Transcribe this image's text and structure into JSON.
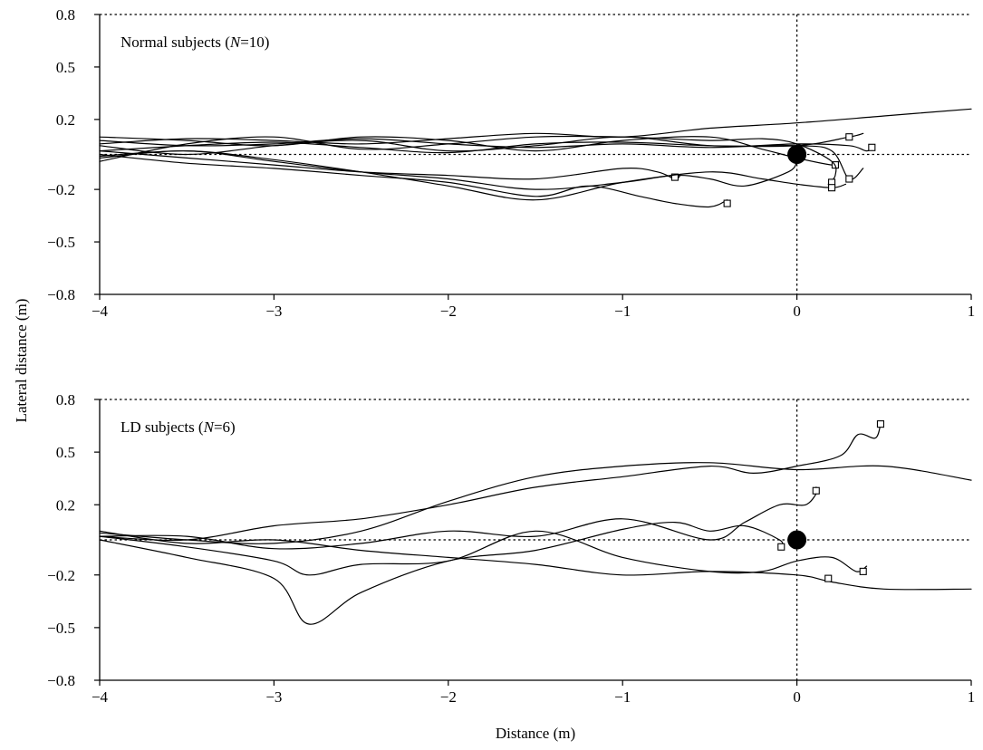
{
  "chart_data": [
    {
      "type": "line",
      "title": "Normal subjects (N=10)",
      "title_parts": [
        "Normal subjects (",
        "N",
        "=10)"
      ],
      "xlabel": "",
      "ylabel": "",
      "xlim": [
        -4,
        1
      ],
      "ylim": [
        -0.8,
        0.8
      ],
      "xticks": [
        -4,
        -3,
        -2,
        -1,
        0,
        1
      ],
      "xtick_labels": [
        "−4",
        "−3",
        "−2",
        "−1",
        "0",
        "1"
      ],
      "yticks": [
        -0.8,
        -0.5,
        -0.2,
        0.2,
        0.5,
        0.8
      ],
      "ytick_labels": [
        "−0.8",
        "−0.5",
        "−0.2",
        "0.2",
        "0.5",
        "0.8"
      ],
      "reference_lines": {
        "x": 0,
        "y": 0
      },
      "target": {
        "x": 0,
        "y": 0
      },
      "series": [
        {
          "values": [
            [
              -4,
              0.02
            ],
            [
              -3.5,
              0.05
            ],
            [
              -3,
              0.07
            ],
            [
              -2.5,
              0.04
            ],
            [
              -2,
              0.01
            ],
            [
              -1.5,
              0.06
            ],
            [
              -1,
              0.07
            ],
            [
              -0.5,
              0.05
            ],
            [
              0,
              0.05
            ],
            [
              0.3,
              0.1
            ],
            [
              0.38,
              0.12
            ]
          ],
          "end": [
            0.3,
            0.1
          ]
        },
        {
          "values": [
            [
              -4,
              0.06
            ],
            [
              -3.5,
              0.09
            ],
            [
              -3,
              0.08
            ],
            [
              -2.5,
              0.06
            ],
            [
              -2,
              0.09
            ],
            [
              -1.5,
              0.12
            ],
            [
              -1,
              0.1
            ],
            [
              -0.5,
              0.15
            ],
            [
              0,
              0.18
            ],
            [
              0.5,
              0.22
            ],
            [
              1,
              0.26
            ]
          ],
          "end": null
        },
        {
          "values": [
            [
              -4,
              -0.02
            ],
            [
              -3.5,
              0.02
            ],
            [
              -3,
              -0.04
            ],
            [
              -2.5,
              -0.1
            ],
            [
              -2,
              -0.14
            ],
            [
              -1.5,
              -0.2
            ],
            [
              -1,
              -0.16
            ],
            [
              -0.7,
              -0.12
            ],
            [
              -0.5,
              -0.14
            ],
            [
              -0.3,
              -0.18
            ],
            [
              -0.05,
              -0.1
            ],
            [
              0,
              -0.04
            ]
          ],
          "end": null
        },
        {
          "values": [
            [
              -4,
              0.1
            ],
            [
              -3.5,
              0.08
            ],
            [
              -3,
              0.05
            ],
            [
              -2.5,
              0.1
            ],
            [
              -2,
              0.08
            ],
            [
              -1.5,
              0.02
            ],
            [
              -1,
              0.08
            ],
            [
              -0.5,
              0.1
            ],
            [
              -0.2,
              0.03
            ],
            [
              0,
              -0.02
            ],
            [
              0.2,
              -0.06
            ],
            [
              0.24,
              -0.04
            ]
          ],
          "end": [
            0.22,
            -0.06
          ]
        },
        {
          "values": [
            [
              -4,
              0.02
            ],
            [
              -3.5,
              -0.02
            ],
            [
              -3,
              -0.06
            ],
            [
              -2.5,
              -0.1
            ],
            [
              -2,
              -0.12
            ],
            [
              -1.5,
              -0.14
            ],
            [
              -1,
              -0.08
            ],
            [
              -0.8,
              -0.1
            ],
            [
              -0.7,
              -0.14
            ],
            [
              -0.67,
              -0.12
            ]
          ],
          "end": [
            -0.7,
            -0.13
          ]
        },
        {
          "values": [
            [
              -4,
              0.05
            ],
            [
              -3.5,
              0
            ],
            [
              -3,
              0.05
            ],
            [
              -2.5,
              0.08
            ],
            [
              -2,
              0.02
            ],
            [
              -1.5,
              0.05
            ],
            [
              -1,
              0.1
            ],
            [
              -0.5,
              0.05
            ],
            [
              0,
              0.05
            ],
            [
              0.2,
              0.02
            ],
            [
              0.3,
              -0.14
            ],
            [
              0.38,
              -0.08
            ]
          ],
          "end": [
            0.3,
            -0.14
          ]
        },
        {
          "values": [
            [
              -4,
              0
            ],
            [
              -3.5,
              -0.05
            ],
            [
              -3,
              -0.08
            ],
            [
              -2.5,
              -0.12
            ],
            [
              -2,
              -0.16
            ],
            [
              -1.5,
              -0.24
            ],
            [
              -1.2,
              -0.18
            ],
            [
              -0.9,
              -0.24
            ],
            [
              -0.7,
              -0.28
            ],
            [
              -0.5,
              -0.3
            ],
            [
              -0.4,
              -0.26
            ]
          ],
          "end": [
            -0.4,
            -0.28
          ]
        },
        {
          "values": [
            [
              -4,
              -0.04
            ],
            [
              -3.5,
              0.06
            ],
            [
              -3,
              0.1
            ],
            [
              -2.5,
              0.03
            ],
            [
              -2,
              0.06
            ],
            [
              -1.5,
              0.1
            ],
            [
              -1,
              0.1
            ],
            [
              -0.5,
              0.08
            ],
            [
              -0.2,
              0.09
            ],
            [
              0,
              0.06
            ],
            [
              0.2,
              -0.04
            ],
            [
              0.22,
              -0.12
            ],
            [
              0.18,
              -0.17
            ]
          ],
          "end": [
            0.2,
            -0.16
          ]
        },
        {
          "values": [
            [
              -4,
              0.08
            ],
            [
              -3.5,
              0.05
            ],
            [
              -3,
              0.06
            ],
            [
              -2.5,
              0.09
            ],
            [
              -2,
              0.06
            ],
            [
              -1.5,
              0.04
            ],
            [
              -1,
              0.06
            ],
            [
              -0.5,
              0.04
            ],
            [
              0,
              0.06
            ],
            [
              0.3,
              0.05
            ],
            [
              0.4,
              0.02
            ],
            [
              0.44,
              0.05
            ]
          ],
          "end": [
            0.43,
            0.04
          ]
        },
        {
          "values": [
            [
              -4,
              -0.01
            ],
            [
              -3.5,
              0.02
            ],
            [
              -3,
              -0.03
            ],
            [
              -2.5,
              -0.1
            ],
            [
              -2,
              -0.18
            ],
            [
              -1.5,
              -0.26
            ],
            [
              -1,
              -0.16
            ],
            [
              -0.5,
              -0.1
            ],
            [
              -0.2,
              -0.14
            ],
            [
              0,
              -0.17
            ],
            [
              0.2,
              -0.19
            ],
            [
              0.28,
              -0.17
            ]
          ],
          "end": [
            0.2,
            -0.19
          ]
        }
      ]
    },
    {
      "type": "line",
      "title": "LD subjects (N=6)",
      "title_parts": [
        "LD subjects (",
        "N",
        "=6)"
      ],
      "xlabel": "Distance (m)",
      "ylabel": "Lateral distance (m)",
      "xlim": [
        -4,
        1
      ],
      "ylim": [
        -0.8,
        0.8
      ],
      "xticks": [
        -4,
        -3,
        -2,
        -1,
        0,
        1
      ],
      "xtick_labels": [
        "−4",
        "−3",
        "−2",
        "−1",
        "0",
        "1"
      ],
      "yticks": [
        -0.8,
        -0.5,
        -0.2,
        0.2,
        0.5,
        0.8
      ],
      "ytick_labels": [
        "−0.8",
        "−0.5",
        "−0.2",
        "0.2",
        "0.5",
        "0.8"
      ],
      "reference_lines": {
        "x": 0,
        "y": 0
      },
      "target": {
        "x": 0,
        "y": 0
      },
      "series": [
        {
          "values": [
            [
              -4,
              0.02
            ],
            [
              -3.5,
              0
            ],
            [
              -3,
              0.08
            ],
            [
              -2.5,
              0.12
            ],
            [
              -2,
              0.2
            ],
            [
              -1.5,
              0.3
            ],
            [
              -1,
              0.36
            ],
            [
              -0.5,
              0.42
            ],
            [
              -0.25,
              0.38
            ],
            [
              0,
              0.42
            ],
            [
              0.25,
              0.48
            ],
            [
              0.35,
              0.6
            ],
            [
              0.45,
              0.58
            ],
            [
              0.48,
              0.66
            ]
          ],
          "end": [
            0.48,
            0.66
          ]
        },
        {
          "values": [
            [
              -4,
              0.04
            ],
            [
              -3.5,
              0
            ],
            [
              -3,
              -0.02
            ],
            [
              -2.5,
              0.05
            ],
            [
              -2,
              0.22
            ],
            [
              -1.5,
              0.36
            ],
            [
              -1,
              0.42
            ],
            [
              -0.5,
              0.44
            ],
            [
              0,
              0.4
            ],
            [
              0.5,
              0.42
            ],
            [
              1,
              0.34
            ]
          ],
          "end": null
        },
        {
          "values": [
            [
              -4,
              0.02
            ],
            [
              -3.5,
              -0.04
            ],
            [
              -3,
              -0.12
            ],
            [
              -2.8,
              -0.2
            ],
            [
              -2.5,
              -0.14
            ],
            [
              -2,
              -0.12
            ],
            [
              -1.5,
              0.05
            ],
            [
              -1,
              -0.1
            ],
            [
              -0.5,
              -0.18
            ],
            [
              -0.2,
              -0.18
            ],
            [
              0,
              -0.12
            ],
            [
              0.2,
              -0.1
            ],
            [
              0.34,
              -0.18
            ],
            [
              0.4,
              -0.15
            ]
          ],
          "end": [
            0.38,
            -0.18
          ]
        },
        {
          "values": [
            [
              -4,
              0
            ],
            [
              -3.5,
              -0.1
            ],
            [
              -3,
              -0.22
            ],
            [
              -2.8,
              -0.48
            ],
            [
              -2.5,
              -0.3
            ],
            [
              -2,
              -0.12
            ],
            [
              -1.5,
              -0.06
            ],
            [
              -1,
              0.06
            ],
            [
              -0.7,
              0.1
            ],
            [
              -0.5,
              0.05
            ],
            [
              -0.3,
              0.08
            ],
            [
              -0.1,
              0
            ],
            [
              -0.09,
              -0.04
            ]
          ],
          "end": [
            -0.09,
            -0.04
          ]
        },
        {
          "values": [
            [
              -4,
              0.02
            ],
            [
              -3.5,
              0.02
            ],
            [
              -3,
              -0.05
            ],
            [
              -2.5,
              -0.02
            ],
            [
              -2,
              0.05
            ],
            [
              -1.5,
              0.02
            ],
            [
              -1,
              0.12
            ],
            [
              -0.5,
              0
            ],
            [
              -0.3,
              0.1
            ],
            [
              -0.1,
              0.2
            ],
            [
              0.05,
              0.2
            ],
            [
              0.12,
              0.28
            ],
            [
              0.11,
              0.3
            ]
          ],
          "end": [
            0.11,
            0.28
          ]
        },
        {
          "values": [
            [
              -4,
              0.05
            ],
            [
              -3.5,
              -0.02
            ],
            [
              -3,
              0
            ],
            [
              -2.5,
              -0.06
            ],
            [
              -2,
              -0.1
            ],
            [
              -1.5,
              -0.14
            ],
            [
              -1,
              -0.2
            ],
            [
              -0.5,
              -0.18
            ],
            [
              0,
              -0.2
            ],
            [
              0.2,
              -0.24
            ],
            [
              0.5,
              -0.28
            ],
            [
              1,
              -0.28
            ]
          ],
          "end": [
            0.18,
            -0.22
          ]
        }
      ]
    }
  ]
}
